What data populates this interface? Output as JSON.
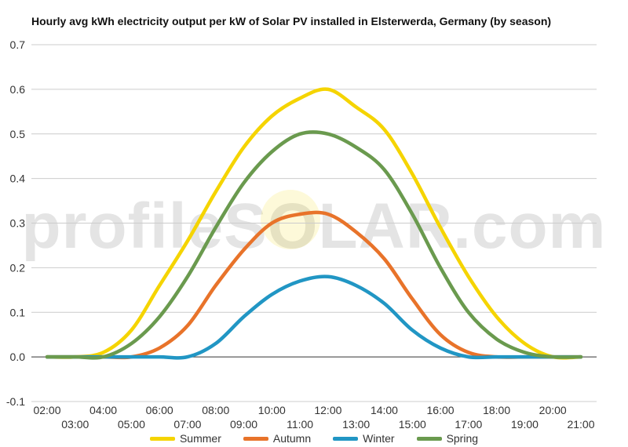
{
  "chart_data": {
    "type": "line",
    "title": "Hourly avg kWh electricity output per kW of Solar PV installed in Elsterwerda, Germany (by season)",
    "xlabel": "",
    "ylabel": "",
    "ylim": [
      -0.1,
      0.7
    ],
    "yticks": [
      "-0.1",
      "0.0",
      "0.1",
      "0.2",
      "0.3",
      "0.4",
      "0.5",
      "0.6",
      "0.7"
    ],
    "categories": [
      "02:00",
      "03:00",
      "04:00",
      "05:00",
      "06:00",
      "07:00",
      "08:00",
      "09:00",
      "10:00",
      "11:00",
      "12:00",
      "13:00",
      "14:00",
      "15:00",
      "16:00",
      "17:00",
      "18:00",
      "19:00",
      "20:00",
      "21:00"
    ],
    "grid": true,
    "legend": "bottom",
    "series": [
      {
        "name": "Summer",
        "color": "#f5d400",
        "values": [
          0.0,
          0.0,
          0.01,
          0.06,
          0.16,
          0.26,
          0.37,
          0.47,
          0.54,
          0.58,
          0.6,
          0.56,
          0.51,
          0.41,
          0.29,
          0.18,
          0.09,
          0.03,
          0.0,
          0.0
        ]
      },
      {
        "name": "Autumn",
        "color": "#e8732a",
        "values": [
          0.0,
          0.0,
          0.0,
          0.0,
          0.02,
          0.07,
          0.16,
          0.24,
          0.3,
          0.32,
          0.32,
          0.28,
          0.22,
          0.13,
          0.05,
          0.01,
          0.0,
          0.0,
          0.0,
          0.0
        ]
      },
      {
        "name": "Winter",
        "color": "#2196c4",
        "values": [
          0.0,
          0.0,
          0.0,
          0.0,
          0.0,
          0.0,
          0.03,
          0.09,
          0.14,
          0.17,
          0.18,
          0.16,
          0.12,
          0.06,
          0.02,
          0.0,
          0.0,
          0.0,
          0.0,
          0.0
        ]
      },
      {
        "name": "Spring",
        "color": "#6a9a4e",
        "values": [
          0.0,
          0.0,
          0.0,
          0.03,
          0.09,
          0.18,
          0.29,
          0.39,
          0.46,
          0.5,
          0.5,
          0.47,
          0.42,
          0.32,
          0.2,
          0.1,
          0.04,
          0.01,
          0.0,
          0.0
        ]
      }
    ]
  },
  "watermark": "profileSOLAR.com"
}
